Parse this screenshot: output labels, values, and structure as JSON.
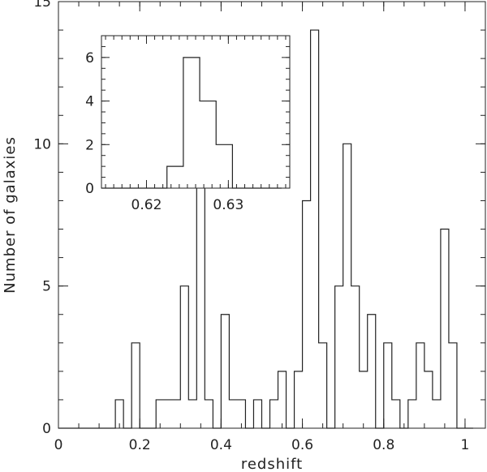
{
  "chart_data": [
    {
      "type": "histogram",
      "xlabel": "redshift",
      "ylabel": "Number of galaxies",
      "xlim": [
        0,
        1.05
      ],
      "ylim": [
        0,
        15.0
      ],
      "xticks": [
        "0",
        "0.2",
        "0.4",
        "0.6",
        "0.8",
        "1"
      ],
      "yticks": [
        "0",
        "5",
        "10",
        "15"
      ],
      "bin_width": 0.02,
      "bin_starts": [
        0.0,
        0.02,
        0.04,
        0.06,
        0.08,
        0.1,
        0.12,
        0.14,
        0.16,
        0.18,
        0.2,
        0.22,
        0.24,
        0.26,
        0.28,
        0.3,
        0.32,
        0.34,
        0.36,
        0.38,
        0.4,
        0.42,
        0.44,
        0.46,
        0.48,
        0.5,
        0.52,
        0.54,
        0.56,
        0.58,
        0.6,
        0.62,
        0.64,
        0.66,
        0.68,
        0.7,
        0.72,
        0.74,
        0.76,
        0.78,
        0.8,
        0.82,
        0.84,
        0.86,
        0.88,
        0.9,
        0.92,
        0.94,
        0.96,
        0.98,
        1.0
      ],
      "counts": [
        0,
        0,
        0,
        0,
        0,
        0,
        0,
        1,
        0,
        3,
        0,
        0,
        1,
        1,
        1,
        5,
        1,
        9,
        1,
        0,
        4,
        1,
        1,
        0,
        1,
        0,
        1,
        2,
        0,
        2,
        8,
        14,
        3,
        0,
        5,
        10,
        5,
        2,
        4,
        0,
        3,
        1,
        0,
        1,
        3,
        2,
        1,
        7,
        3,
        0,
        0
      ],
      "grid": false
    },
    {
      "type": "histogram",
      "inset": true,
      "xlim": [
        0.6145,
        0.6375
      ],
      "ylim": [
        0,
        7
      ],
      "xticks": [
        "0.62",
        "0.63"
      ],
      "yticks": [
        "0",
        "2",
        "4",
        "6"
      ],
      "bin_width": 0.002,
      "bin_starts": [
        0.6145,
        0.6165,
        0.6185,
        0.6205,
        0.6225,
        0.6245,
        0.6265,
        0.6285,
        0.6305,
        0.6325,
        0.6345
      ],
      "counts": [
        0,
        0,
        0,
        0,
        1,
        6,
        4,
        2,
        0,
        0,
        0
      ],
      "grid": false
    }
  ]
}
